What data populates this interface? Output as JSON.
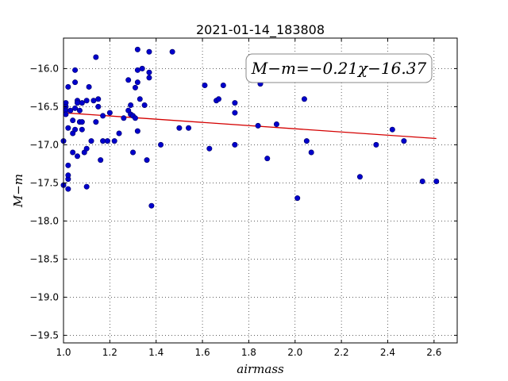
{
  "chart_data": {
    "type": "scatter",
    "title": "2021-01-14_183808",
    "xlabel": "airmass",
    "ylabel": "M−m",
    "xlim": [
      1.0,
      2.7
    ],
    "ylim": [
      -19.6,
      -15.6
    ],
    "y_inverted": true,
    "xticks": [
      "1.0",
      "1.2",
      "1.4",
      "1.6",
      "1.8",
      "2.0",
      "2.2",
      "2.4",
      "2.6"
    ],
    "yticks": [
      "−16.0",
      "−16.5",
      "−17.0",
      "−17.5",
      "−18.0",
      "−18.5",
      "−19.0",
      "−19.5"
    ],
    "grid": true,
    "annotation": "M−m=−0.21χ−16.37",
    "fit": {
      "slope": -0.21,
      "intercept": -16.37,
      "x_range": [
        1.0,
        2.61
      ],
      "color": "#d40000"
    },
    "marker_color": "#0000cc",
    "points": [
      [
        1.0,
        -16.95
      ],
      [
        1.0,
        -17.53
      ],
      [
        1.01,
        -16.45
      ],
      [
        1.01,
        -16.5
      ],
      [
        1.01,
        -16.55
      ],
      [
        1.01,
        -16.6
      ],
      [
        1.02,
        -17.58
      ],
      [
        1.02,
        -17.45
      ],
      [
        1.02,
        -17.4
      ],
      [
        1.02,
        -17.27
      ],
      [
        1.02,
        -16.78
      ],
      [
        1.02,
        -16.24
      ],
      [
        1.03,
        -16.55
      ],
      [
        1.04,
        -16.68
      ],
      [
        1.04,
        -16.85
      ],
      [
        1.04,
        -17.1
      ],
      [
        1.05,
        -16.8
      ],
      [
        1.05,
        -16.18
      ],
      [
        1.05,
        -16.52
      ],
      [
        1.05,
        -16.02
      ],
      [
        1.06,
        -16.42
      ],
      [
        1.06,
        -16.45
      ],
      [
        1.06,
        -17.15
      ],
      [
        1.07,
        -16.55
      ],
      [
        1.07,
        -16.7
      ],
      [
        1.08,
        -16.8
      ],
      [
        1.08,
        -16.7
      ],
      [
        1.08,
        -16.45
      ],
      [
        1.09,
        -17.1
      ],
      [
        1.1,
        -17.05
      ],
      [
        1.1,
        -17.55
      ],
      [
        1.1,
        -16.42
      ],
      [
        1.11,
        -16.24
      ],
      [
        1.12,
        -16.95
      ],
      [
        1.13,
        -16.42
      ],
      [
        1.14,
        -16.7
      ],
      [
        1.14,
        -15.85
      ],
      [
        1.15,
        -16.4
      ],
      [
        1.15,
        -16.5
      ],
      [
        1.16,
        -17.2
      ],
      [
        1.17,
        -16.95
      ],
      [
        1.17,
        -16.62
      ],
      [
        1.19,
        -16.95
      ],
      [
        1.2,
        -16.58
      ],
      [
        1.22,
        -16.95
      ],
      [
        1.24,
        -16.85
      ],
      [
        1.26,
        -16.65
      ],
      [
        1.28,
        -16.15
      ],
      [
        1.28,
        -16.55
      ],
      [
        1.29,
        -16.6
      ],
      [
        1.29,
        -16.48
      ],
      [
        1.3,
        -16.62
      ],
      [
        1.3,
        -17.1
      ],
      [
        1.31,
        -16.65
      ],
      [
        1.31,
        -16.25
      ],
      [
        1.32,
        -15.75
      ],
      [
        1.32,
        -16.18
      ],
      [
        1.32,
        -16.02
      ],
      [
        1.33,
        -16.4
      ],
      [
        1.34,
        -16.0
      ],
      [
        1.35,
        -16.48
      ],
      [
        1.36,
        -17.2
      ],
      [
        1.37,
        -16.05
      ],
      [
        1.37,
        -16.12
      ],
      [
        1.37,
        -15.78
      ],
      [
        1.38,
        -17.8
      ],
      [
        1.32,
        -16.82
      ],
      [
        1.42,
        -17.0
      ],
      [
        1.47,
        -15.78
      ],
      [
        1.5,
        -16.78
      ],
      [
        1.54,
        -16.78
      ],
      [
        1.61,
        -16.22
      ],
      [
        1.63,
        -17.05
      ],
      [
        1.66,
        -16.42
      ],
      [
        1.67,
        -16.4
      ],
      [
        1.69,
        -16.22
      ],
      [
        1.74,
        -16.45
      ],
      [
        1.74,
        -16.58
      ],
      [
        1.74,
        -17.0
      ],
      [
        1.84,
        -16.75
      ],
      [
        1.85,
        -16.2
      ],
      [
        1.88,
        -17.18
      ],
      [
        1.92,
        -16.73
      ],
      [
        2.01,
        -17.7
      ],
      [
        2.04,
        -16.4
      ],
      [
        2.05,
        -16.95
      ],
      [
        2.07,
        -17.1
      ],
      [
        2.28,
        -17.42
      ],
      [
        2.35,
        -17.0
      ],
      [
        2.42,
        -16.8
      ],
      [
        2.47,
        -16.95
      ],
      [
        2.55,
        -17.48
      ],
      [
        2.61,
        -17.48
      ]
    ]
  }
}
